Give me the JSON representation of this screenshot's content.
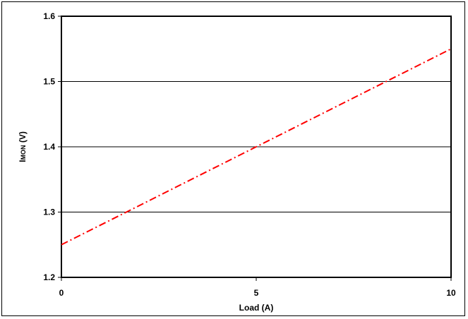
{
  "chart_data": {
    "type": "line",
    "title": "",
    "xlabel": "Load (A)",
    "ylabel": "IMON (V)",
    "xlim": [
      0,
      10
    ],
    "ylim": [
      1.2,
      1.6
    ],
    "x_ticks": [
      "0",
      "5",
      "10"
    ],
    "y_ticks": [
      "1.2",
      "1.3",
      "1.4",
      "1.5",
      "1.6"
    ],
    "grid": "horizontal",
    "legend": "none",
    "series": [
      {
        "color": "#ff0000",
        "line_style": "dash-dot",
        "x": [
          0,
          10
        ],
        "y": [
          1.25,
          1.55
        ]
      }
    ]
  }
}
